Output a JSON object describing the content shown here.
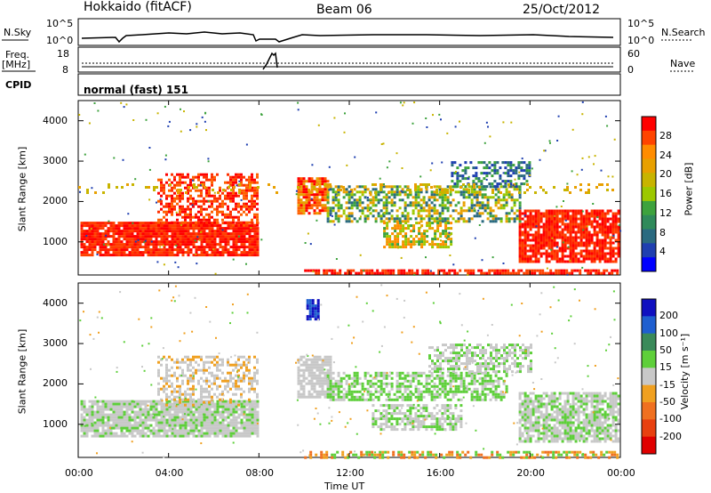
{
  "header": {
    "station": "Hokkaido (fitACF)",
    "beam": "Beam 06",
    "date": "25/Oct/2012"
  },
  "status_panels": {
    "nsky_label": "N.Sky",
    "nsky_ticks": [
      "10^5",
      "10^0"
    ],
    "nsearch_label": "N.Search",
    "nsearch_ticks": [
      "10^5",
      "10^0"
    ],
    "freq_label_1": "Freq.",
    "freq_label_2": "[MHz]",
    "freq_ticks": [
      "18",
      "8"
    ],
    "nave_label": "Nave",
    "nave_ticks": [
      "60",
      "0"
    ],
    "cpid_label": "CPID",
    "cpid_value": "normal (fast) 151"
  },
  "chart_data": [
    {
      "type": "heatmap",
      "title": "Power",
      "ylabel": "Slant Range [km]",
      "xlabel": "Time UT",
      "yticks": [
        "1000",
        "2000",
        "3000",
        "4000"
      ],
      "ylim": [
        180,
        4500
      ],
      "xticks": [
        "00:00",
        "04:00",
        "08:00",
        "12:00",
        "16:00",
        "20:00",
        "00:00"
      ],
      "xlim": [
        0,
        24
      ],
      "colorbar": {
        "label": "Power [dB]",
        "ticks": [
          "28",
          "24",
          "20",
          "16",
          "12",
          "8",
          "4"
        ],
        "colors": [
          "#ff0000",
          "#ff4400",
          "#ff8c00",
          "#e8a000",
          "#c8b400",
          "#9cc800",
          "#3da23d",
          "#2f8a5a",
          "#2a6a80",
          "#1f3fb0",
          "#0000ff"
        ],
        "range": [
          0,
          30
        ]
      }
    },
    {
      "type": "heatmap",
      "title": "Velocity",
      "ylabel": "Slant Range [km]",
      "xlabel": "Time UT",
      "yticks": [
        "1000",
        "2000",
        "3000",
        "4000"
      ],
      "ylim": [
        180,
        4500
      ],
      "xticks": [
        "00:00",
        "04:00",
        "08:00",
        "12:00",
        "16:00",
        "20:00",
        "00:00"
      ],
      "xlim": [
        0,
        24
      ],
      "colorbar": {
        "label": "Velocity [m s⁻¹]",
        "ticks": [
          "200",
          "100",
          "50",
          "15",
          "-15",
          "-50",
          "-100",
          "-200"
        ],
        "colors": [
          "#1010c0",
          "#1f5fd0",
          "#3a8a5a",
          "#5ecf3a",
          "#c8c8c8",
          "#f0a020",
          "#f07020",
          "#e84010",
          "#e00000"
        ],
        "range": [
          -250,
          250
        ]
      }
    }
  ]
}
